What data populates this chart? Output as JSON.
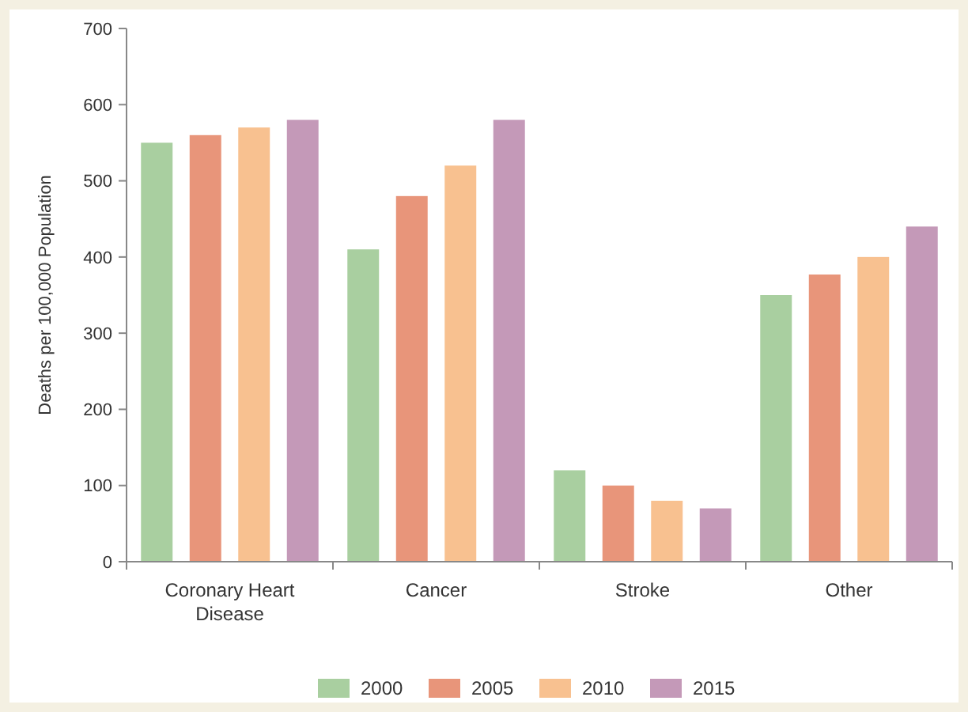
{
  "chart_data": {
    "type": "bar",
    "ylabel": "Deaths per 100,000 Population",
    "categories": [
      "Coronary Heart\nDisease",
      "Cancer",
      "Stroke",
      "Other"
    ],
    "series": [
      {
        "name": "2000",
        "color": "#a9cfa0",
        "values": [
          550,
          410,
          120,
          350
        ]
      },
      {
        "name": "2005",
        "color": "#e8957a",
        "values": [
          560,
          480,
          100,
          377
        ]
      },
      {
        "name": "2010",
        "color": "#f8c190",
        "values": [
          570,
          520,
          80,
          400
        ]
      },
      {
        "name": "2015",
        "color": "#c499b8",
        "values": [
          580,
          580,
          70,
          440
        ]
      }
    ],
    "ylim": [
      0,
      700
    ],
    "yticks": [
      0,
      100,
      200,
      300,
      400,
      500,
      600,
      700
    ],
    "grid": false,
    "legend": "bottom"
  }
}
